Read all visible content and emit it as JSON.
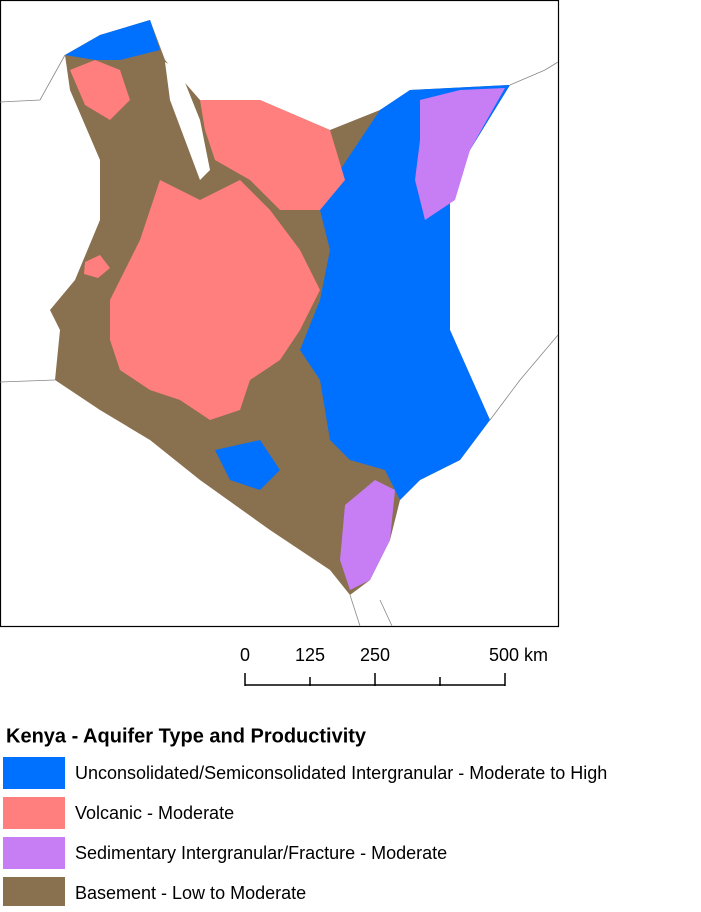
{
  "map": {
    "scale_bar": {
      "labels": [
        "0",
        "125",
        "250",
        "500 km"
      ]
    },
    "legend": {
      "title": "Kenya - Aquifer Type and Productivity",
      "items": [
        {
          "label": "Unconsolidated/Semiconsolidated Intergranular - Moderate to High",
          "color": "#0070ff"
        },
        {
          "label": "Volcanic - Moderate",
          "color": "#ff7f7f"
        },
        {
          "label": "Sedimentary Intergranular/Fracture - Moderate",
          "color": "#c77df3"
        },
        {
          "label": "Basement - Low to Moderate",
          "color": "#89704e"
        }
      ]
    }
  }
}
